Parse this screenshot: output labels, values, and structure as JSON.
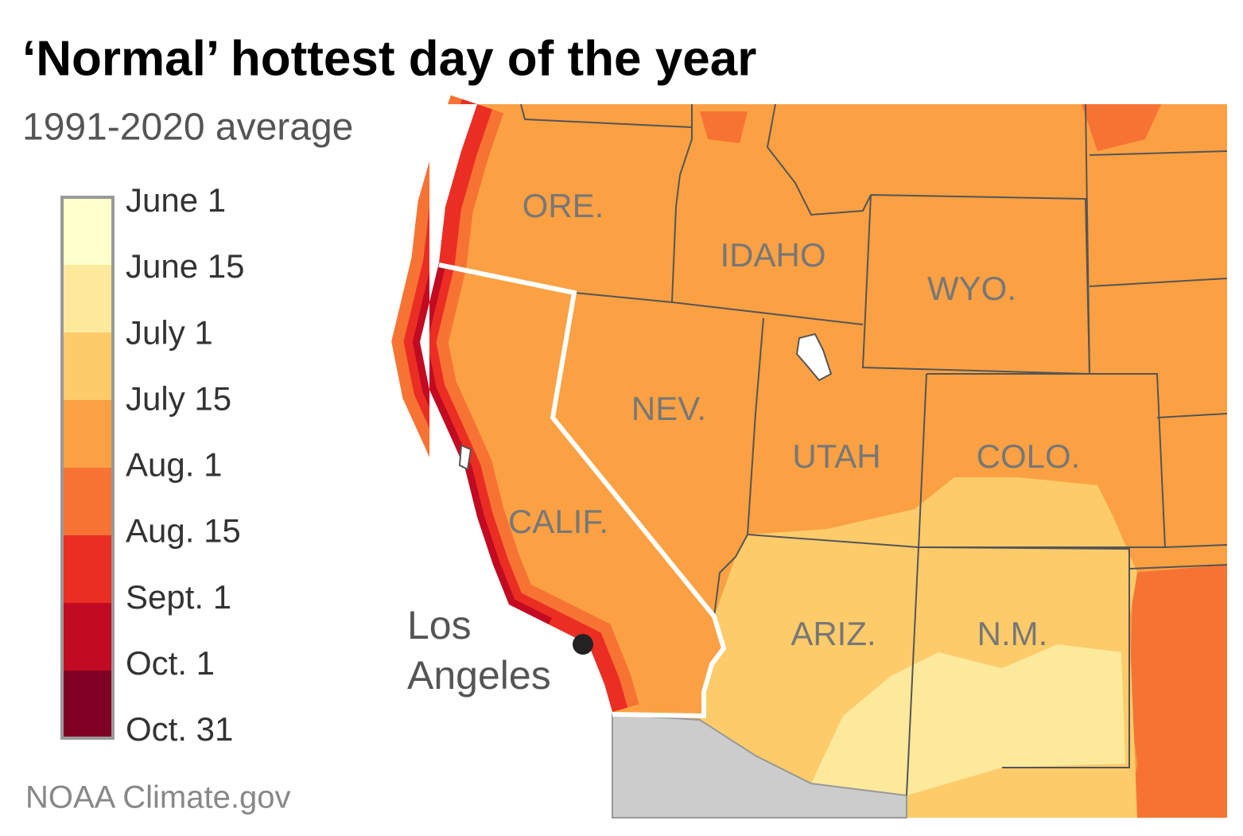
{
  "title": "‘Normal’ hottest day of the year",
  "subtitle": "1991-2020 average",
  "legend": {
    "labels": [
      "June 1",
      "June 15",
      "July 1",
      "July 15",
      "Aug. 1",
      "Aug. 15",
      "Sept. 1",
      "Oct. 1",
      "Oct. 31"
    ],
    "colors": [
      "#ffffcc",
      "#fde99c",
      "#fdcb6a",
      "#fba143",
      "#f77334",
      "#ea2e23",
      "#c20a22",
      "#7f0024"
    ]
  },
  "states": [
    "ORE.",
    "IDAHO",
    "WYO.",
    "NEV.",
    "UTAH",
    "COLO.",
    "CALIF.",
    "ARIZ.",
    "N.M."
  ],
  "city": {
    "lines": [
      "Los",
      "Angeles"
    ]
  },
  "source": "NOAA Climate.gov"
}
